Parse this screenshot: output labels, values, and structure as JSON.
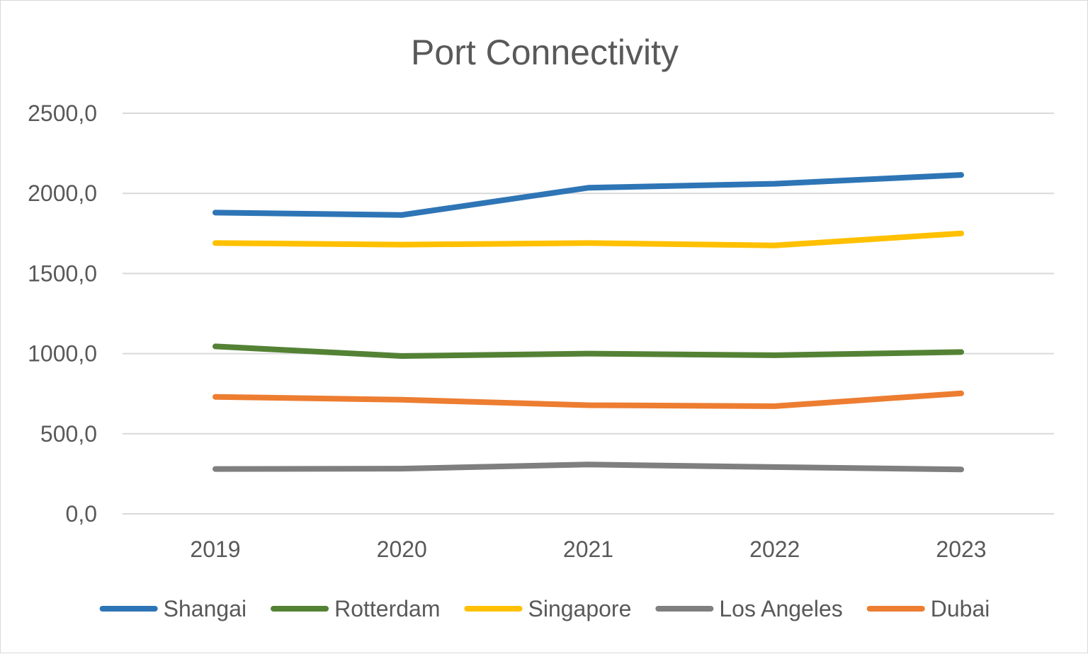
{
  "chart_data": {
    "type": "line",
    "title": "Port Connectivity",
    "xlabel": "",
    "ylabel": "",
    "categories": [
      "2019",
      "2020",
      "2021",
      "2022",
      "2023"
    ],
    "ylim": [
      0,
      2500
    ],
    "yticks": [
      0,
      500,
      1000,
      1500,
      2000,
      2500
    ],
    "ytick_labels": [
      "0,0",
      "500,0",
      "1000,0",
      "1500,0",
      "2000,0",
      "2500,0"
    ],
    "grid": true,
    "legend_position": "bottom",
    "series": [
      {
        "name": "Shangai",
        "color": "#2E75B6",
        "values": [
          1880,
          1865,
          2035,
          2060,
          2115
        ]
      },
      {
        "name": "Rotterdam",
        "color": "#548235",
        "values": [
          1045,
          985,
          1000,
          990,
          1010
        ]
      },
      {
        "name": "Singapore",
        "color": "#FFC000",
        "values": [
          1690,
          1680,
          1690,
          1675,
          1750
        ]
      },
      {
        "name": "Los Angeles",
        "color": "#7F7F7F",
        "values": [
          280,
          282,
          308,
          292,
          277
        ]
      },
      {
        "name": "Dubai",
        "color": "#ED7D31",
        "values": [
          730,
          712,
          678,
          672,
          752
        ]
      }
    ]
  }
}
